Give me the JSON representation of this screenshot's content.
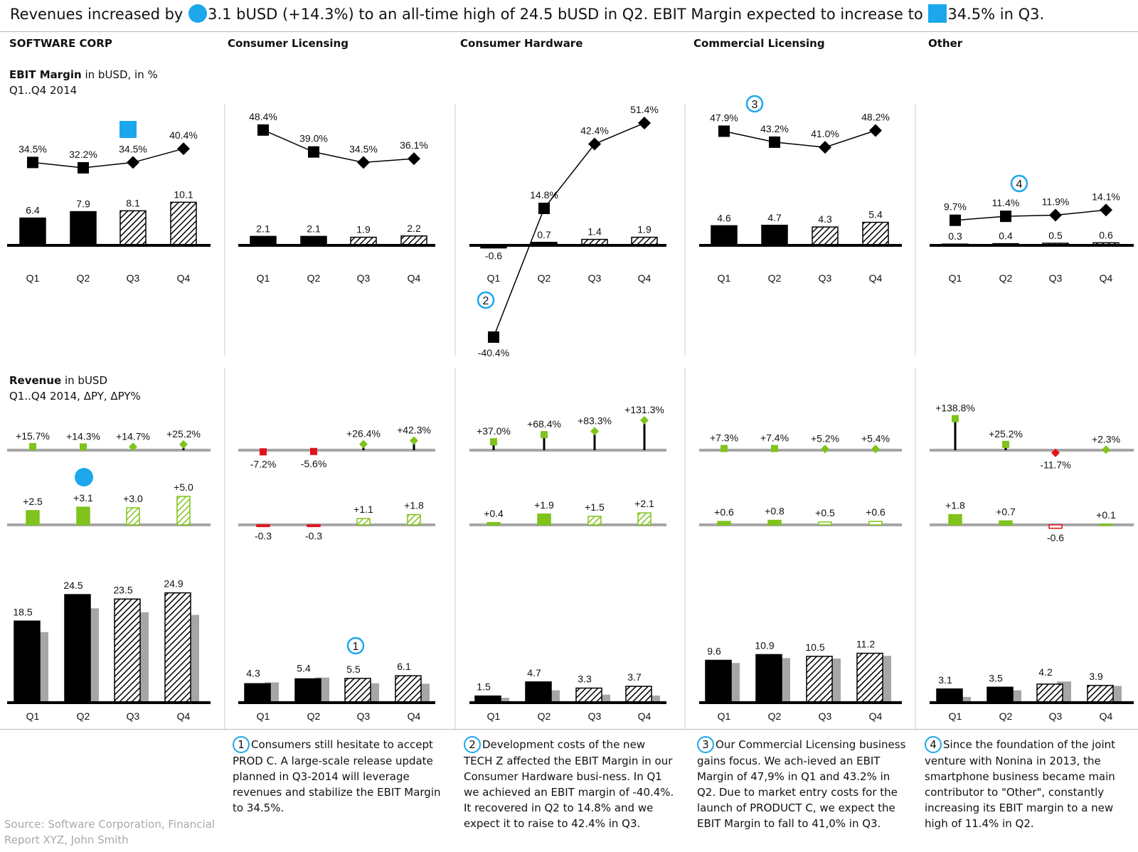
{
  "headline": {
    "part1": "Revenues increased by",
    "part2": "3.1 bUSD (+14.3%) to an all-time high of 24.5 bUSD in Q2. EBIT Margin expected to increase to",
    "part3": "34.5% in Q3."
  },
  "columns": [
    "SOFTWARE CORP",
    "Consumer Licensing",
    "Consumer Hardware",
    "Commercial Licensing",
    "Other"
  ],
  "ebit_title": {
    "bold": "EBIT Margin",
    "rest": " in bUSD, in %",
    "line2": "Q1..Q4 2014"
  },
  "revenue_title": {
    "bold": "Revenue",
    "rest": " in bUSD",
    "line2": "Q1..Q4 2014, ΔPY, ΔPY%"
  },
  "colors": {
    "actual": "#000000",
    "previous_year": "#a6a6a6",
    "positive": "#7fc31c",
    "negative": "#e3111b",
    "highlight": "#1ca7ec",
    "axis": "#a6a6a6"
  },
  "chart_data": {
    "type": "bar",
    "categories": [
      "Q1",
      "Q2",
      "Q3",
      "Q4"
    ],
    "note": "Q1-Q2 actual (solid), Q3-Q4 forecast (hatched)",
    "panels": [
      {
        "name": "SOFTWARE CORP",
        "ebit": [
          6.4,
          7.9,
          8.1,
          10.1
        ],
        "ebit_labels": [
          "6.4",
          "7.9",
          "8.1",
          "10.1"
        ],
        "margin": [
          34.5,
          32.2,
          34.5,
          40.4
        ],
        "margin_labels": [
          "34.5%",
          "32.2%",
          "34.5%",
          "40.4%"
        ],
        "revenue": [
          18.5,
          24.5,
          23.5,
          24.9
        ],
        "revenue_labels": [
          "18.5",
          "24.5",
          "23.5",
          "24.9"
        ],
        "revenue_py": [
          16.0,
          21.4,
          20.5,
          19.9
        ],
        "dpy": [
          2.5,
          3.1,
          3.0,
          5.0
        ],
        "dpy_labels": [
          "+2.5",
          "+3.1",
          "+3.0",
          "+5.0"
        ],
        "dpy_pct": [
          15.7,
          14.3,
          14.7,
          25.2
        ],
        "dpy_pct_labels": [
          "+15.7%",
          "+14.3%",
          "+14.7%",
          "+25.2%"
        ]
      },
      {
        "name": "Consumer Licensing",
        "ebit": [
          2.1,
          2.1,
          1.9,
          2.2
        ],
        "ebit_labels": [
          "2.1",
          "2.1",
          "1.9",
          "2.2"
        ],
        "margin": [
          48.4,
          39.0,
          34.5,
          36.1
        ],
        "margin_labels": [
          "48.4%",
          "39.0%",
          "34.5%",
          "36.1%"
        ],
        "revenue": [
          4.3,
          5.4,
          5.5,
          6.1
        ],
        "revenue_labels": [
          "4.3",
          "5.4",
          "5.5",
          "6.1"
        ],
        "revenue_py": [
          4.6,
          5.7,
          4.4,
          4.3
        ],
        "dpy": [
          -0.3,
          -0.3,
          1.1,
          1.8
        ],
        "dpy_labels": [
          "-0.3",
          "-0.3",
          "+1.1",
          "+1.8"
        ],
        "dpy_pct": [
          -7.2,
          -5.6,
          26.4,
          42.3
        ],
        "dpy_pct_labels": [
          "-7.2%",
          "-5.6%",
          "+26.4%",
          "+42.3%"
        ]
      },
      {
        "name": "Consumer Hardware",
        "ebit": [
          -0.6,
          0.7,
          1.4,
          1.9
        ],
        "ebit_labels": [
          "-0.6",
          "0.7",
          "1.4",
          "1.9"
        ],
        "margin": [
          -40.4,
          14.8,
          42.4,
          51.4
        ],
        "margin_labels": [
          "-40.4%",
          "14.8%",
          "42.4%",
          "51.4%"
        ],
        "revenue": [
          1.5,
          4.7,
          3.3,
          3.7
        ],
        "revenue_labels": [
          "1.5",
          "4.7",
          "3.3",
          "3.7"
        ],
        "revenue_py": [
          1.1,
          2.8,
          1.8,
          1.6
        ],
        "dpy": [
          0.4,
          1.9,
          1.5,
          2.1
        ],
        "dpy_labels": [
          "+0.4",
          "+1.9",
          "+1.5",
          "+2.1"
        ],
        "dpy_pct": [
          37.0,
          68.4,
          83.3,
          131.3
        ],
        "dpy_pct_labels": [
          "+37.0%",
          "+68.4%",
          "+83.3%",
          "+131.3%"
        ]
      },
      {
        "name": "Commercial Licensing",
        "ebit": [
          4.6,
          4.7,
          4.3,
          5.4
        ],
        "ebit_labels": [
          "4.6",
          "4.7",
          "4.3",
          "5.4"
        ],
        "margin": [
          47.9,
          43.2,
          41.0,
          48.2
        ],
        "margin_labels": [
          "47.9%",
          "43.2%",
          "41.0%",
          "48.2%"
        ],
        "revenue": [
          9.6,
          10.9,
          10.5,
          11.2
        ],
        "revenue_labels": [
          "9.6",
          "10.9",
          "10.5",
          "11.2"
        ],
        "revenue_py": [
          9.0,
          10.1,
          10.0,
          10.6
        ],
        "dpy": [
          0.6,
          0.8,
          0.5,
          0.6
        ],
        "dpy_labels": [
          "+0.6",
          "+0.8",
          "+0.5",
          "+0.6"
        ],
        "dpy_pct": [
          7.3,
          7.4,
          5.2,
          5.4
        ],
        "dpy_pct_labels": [
          "+7.3%",
          "+7.4%",
          "+5.2%",
          "+5.4%"
        ]
      },
      {
        "name": "Other",
        "ebit": [
          0.3,
          0.4,
          0.5,
          0.6
        ],
        "ebit_labels": [
          "0.3",
          "0.4",
          "0.5",
          "0.6"
        ],
        "margin": [
          9.7,
          11.4,
          11.9,
          14.1
        ],
        "margin_labels": [
          "9.7%",
          "11.4%",
          "11.9%",
          "14.1%"
        ],
        "revenue": [
          3.1,
          3.5,
          4.2,
          3.9
        ],
        "revenue_labels": [
          "3.1",
          "3.5",
          "4.2",
          "3.9"
        ],
        "revenue_py": [
          1.3,
          2.8,
          4.8,
          3.8
        ],
        "dpy": [
          1.8,
          0.7,
          -0.6,
          0.1
        ],
        "dpy_labels": [
          "+1.8",
          "+0.7",
          "-0.6",
          "+0.1"
        ],
        "dpy_pct": [
          138.8,
          25.2,
          -11.7,
          2.3
        ],
        "dpy_pct_labels": [
          "+138.8%",
          "+25.2%",
          "-11.7%",
          "+2.3%"
        ]
      }
    ],
    "markers": [
      {
        "label": "1",
        "panel": 1,
        "chart": "revenue",
        "quarter": 2
      },
      {
        "label": "2",
        "panel": 2,
        "chart": "margin",
        "quarter": 0
      },
      {
        "label": "3",
        "panel": 3,
        "chart": "margin",
        "quarter": 0
      },
      {
        "label": "4",
        "panel": 4,
        "chart": "margin",
        "quarter": 1
      }
    ]
  },
  "notes": [
    {
      "num": "1",
      "text": "Consumers still hesitate to accept PROD C. A large-scale release update planned in Q3-2014 will leverage revenues and stabilize the EBIT Margin to 34.5%."
    },
    {
      "num": "2",
      "text": "Development costs of the new TECH Z affected the EBIT Margin in our Consumer Hardware busi-ness. In Q1 we achieved an EBIT margin of -40.4%. It recovered in Q2 to 14.8% and we expect it to raise to 42.4% in Q3."
    },
    {
      "num": "3",
      "text": "Our Commercial Licensing business gains focus. We ach-ieved an EBIT Margin of 47,9% in Q1 and 43.2% in Q2. Due to market entry costs for the launch of PRODUCT C, we expect the EBIT Margin to fall to 41,0% in Q3."
    },
    {
      "num": "4",
      "text": "Since the foundation of the joint venture with Nonina in 2013, the smartphone business became main contributor to \"Other\", constantly increasing its EBIT margin to a new high of 11.4% in Q2."
    }
  ],
  "source": "Source: Software Corporation, Financial Report XYZ, John Smith"
}
